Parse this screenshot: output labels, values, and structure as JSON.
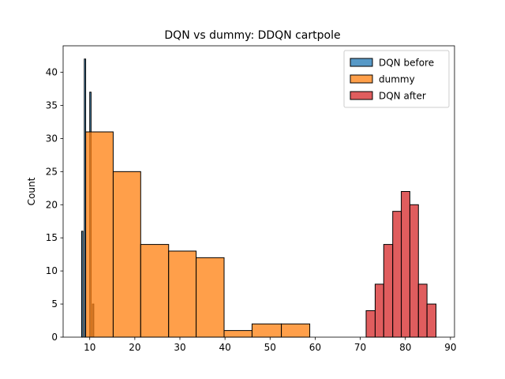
{
  "chart_data": {
    "type": "bar",
    "title": "DQN vs dummy: DDQN cartpole",
    "xlabel": "",
    "ylabel": "Count",
    "xlim": [
      4.1,
      90.9
    ],
    "ylim": [
      0,
      44
    ],
    "xticks": [
      10,
      20,
      30,
      40,
      50,
      60,
      70,
      80,
      90
    ],
    "yticks": [
      0,
      5,
      10,
      15,
      20,
      25,
      30,
      35,
      40
    ],
    "legend_position": "top-right",
    "colors": {
      "DQN before": "#1f77b4",
      "dummy": "#ff7f0e",
      "DQN after": "#d62728"
    },
    "series": [
      {
        "name": "DQN before",
        "bins": [
          {
            "x0": 8.2,
            "x1": 8.5,
            "count": 16
          },
          {
            "x0": 8.8,
            "x1": 9.1,
            "count": 42
          },
          {
            "x0": 9.4,
            "x1": 9.7,
            "count": 0
          },
          {
            "x0": 10.0,
            "x1": 10.3,
            "count": 37
          },
          {
            "x0": 10.6,
            "x1": 10.9,
            "count": 5
          }
        ]
      },
      {
        "name": "dummy",
        "bins": [
          {
            "x0": 9.1,
            "x1": 15.2,
            "count": 31
          },
          {
            "x0": 15.2,
            "x1": 21.3,
            "count": 25
          },
          {
            "x0": 21.3,
            "x1": 27.5,
            "count": 14
          },
          {
            "x0": 27.5,
            "x1": 33.6,
            "count": 13
          },
          {
            "x0": 33.6,
            "x1": 39.8,
            "count": 12
          },
          {
            "x0": 39.8,
            "x1": 46.0,
            "count": 1
          },
          {
            "x0": 46.0,
            "x1": 52.5,
            "count": 2
          },
          {
            "x0": 52.5,
            "x1": 58.8,
            "count": 2
          }
        ]
      },
      {
        "name": "DQN after",
        "bins": [
          {
            "x0": 71.3,
            "x1": 73.3,
            "count": 4
          },
          {
            "x0": 73.3,
            "x1": 75.2,
            "count": 8
          },
          {
            "x0": 75.2,
            "x1": 77.2,
            "count": 14
          },
          {
            "x0": 77.2,
            "x1": 79.1,
            "count": 19
          },
          {
            "x0": 79.1,
            "x1": 81.0,
            "count": 22
          },
          {
            "x0": 81.0,
            "x1": 82.9,
            "count": 20
          },
          {
            "x0": 82.9,
            "x1": 84.8,
            "count": 8
          },
          {
            "x0": 84.8,
            "x1": 86.8,
            "count": 5
          }
        ]
      }
    ]
  }
}
